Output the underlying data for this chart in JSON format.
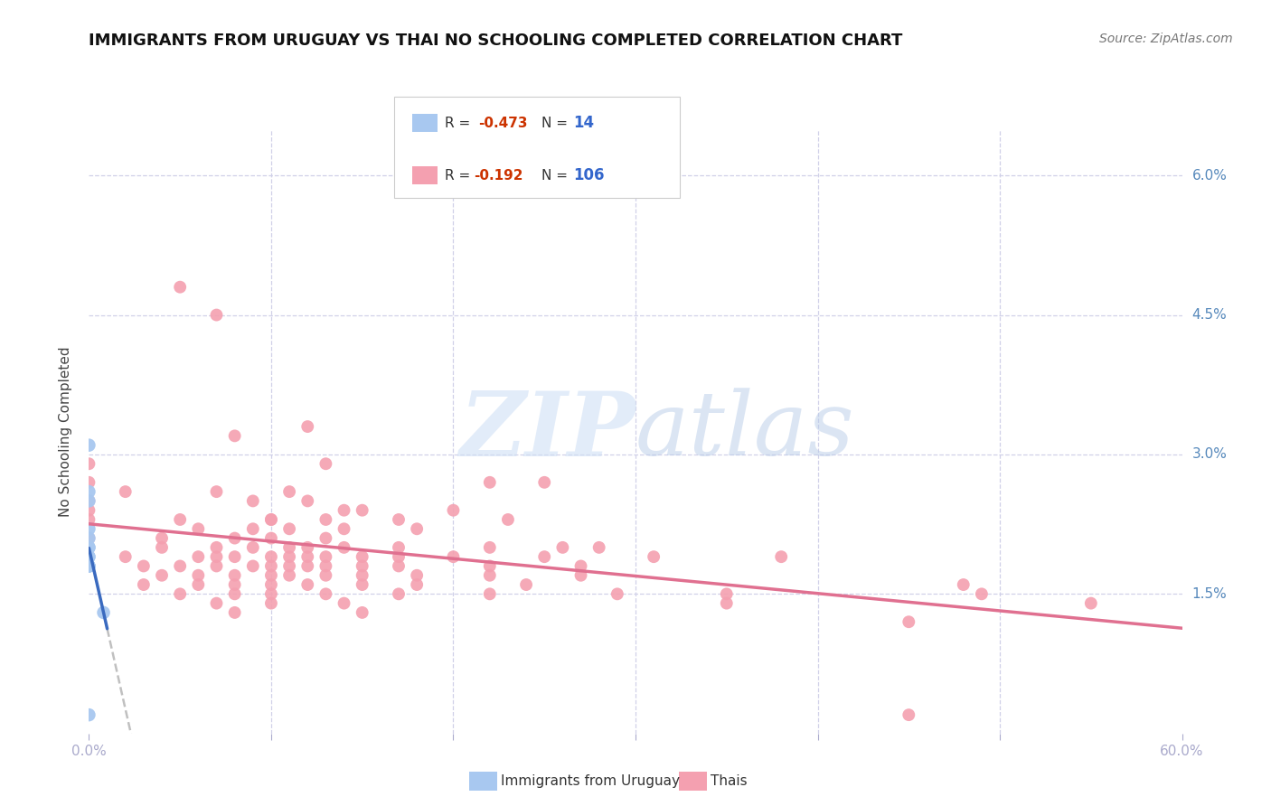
{
  "title": "IMMIGRANTS FROM URUGUAY VS THAI NO SCHOOLING COMPLETED CORRELATION CHART",
  "source": "Source: ZipAtlas.com",
  "ylabel": "No Schooling Completed",
  "uruguay_color": "#a8c8f0",
  "thai_color": "#f4a0b0",
  "trendline_uruguay_color": "#3a6abf",
  "trendline_thai_color": "#e07090",
  "trendline_extended_color": "#c0c0c0",
  "background_color": "#ffffff",
  "grid_color": "#d0d0e8",
  "uruguay_points": [
    [
      0.0,
      0.031
    ],
    [
      0.0,
      0.026
    ],
    [
      0.0,
      0.025
    ],
    [
      0.0,
      0.022
    ],
    [
      0.0,
      0.021
    ],
    [
      0.0,
      0.02
    ],
    [
      0.0,
      0.02
    ],
    [
      0.0,
      0.019
    ],
    [
      0.0,
      0.019
    ],
    [
      0.0,
      0.018
    ],
    [
      0.0,
      0.018
    ],
    [
      0.0,
      0.018
    ],
    [
      0.008,
      0.013
    ],
    [
      0.0,
      0.002
    ]
  ],
  "thai_points": [
    [
      0.05,
      0.048
    ],
    [
      0.07,
      0.045
    ],
    [
      0.12,
      0.033
    ],
    [
      0.08,
      0.032
    ],
    [
      0.0,
      0.029
    ],
    [
      0.13,
      0.029
    ],
    [
      0.22,
      0.027
    ],
    [
      0.25,
      0.027
    ],
    [
      0.0,
      0.027
    ],
    [
      0.02,
      0.026
    ],
    [
      0.07,
      0.026
    ],
    [
      0.11,
      0.026
    ],
    [
      0.0,
      0.025
    ],
    [
      0.09,
      0.025
    ],
    [
      0.12,
      0.025
    ],
    [
      0.14,
      0.024
    ],
    [
      0.15,
      0.024
    ],
    [
      0.2,
      0.024
    ],
    [
      0.0,
      0.024
    ],
    [
      0.05,
      0.023
    ],
    [
      0.1,
      0.023
    ],
    [
      0.1,
      0.023
    ],
    [
      0.13,
      0.023
    ],
    [
      0.17,
      0.023
    ],
    [
      0.23,
      0.023
    ],
    [
      0.0,
      0.023
    ],
    [
      0.06,
      0.022
    ],
    [
      0.09,
      0.022
    ],
    [
      0.11,
      0.022
    ],
    [
      0.14,
      0.022
    ],
    [
      0.18,
      0.022
    ],
    [
      0.04,
      0.021
    ],
    [
      0.08,
      0.021
    ],
    [
      0.1,
      0.021
    ],
    [
      0.13,
      0.021
    ],
    [
      0.0,
      0.021
    ],
    [
      0.04,
      0.02
    ],
    [
      0.07,
      0.02
    ],
    [
      0.09,
      0.02
    ],
    [
      0.11,
      0.02
    ],
    [
      0.12,
      0.02
    ],
    [
      0.14,
      0.02
    ],
    [
      0.17,
      0.02
    ],
    [
      0.22,
      0.02
    ],
    [
      0.26,
      0.02
    ],
    [
      0.28,
      0.02
    ],
    [
      0.02,
      0.019
    ],
    [
      0.06,
      0.019
    ],
    [
      0.07,
      0.019
    ],
    [
      0.08,
      0.019
    ],
    [
      0.1,
      0.019
    ],
    [
      0.11,
      0.019
    ],
    [
      0.12,
      0.019
    ],
    [
      0.13,
      0.019
    ],
    [
      0.15,
      0.019
    ],
    [
      0.17,
      0.019
    ],
    [
      0.2,
      0.019
    ],
    [
      0.25,
      0.019
    ],
    [
      0.31,
      0.019
    ],
    [
      0.38,
      0.019
    ],
    [
      0.03,
      0.018
    ],
    [
      0.05,
      0.018
    ],
    [
      0.07,
      0.018
    ],
    [
      0.09,
      0.018
    ],
    [
      0.1,
      0.018
    ],
    [
      0.11,
      0.018
    ],
    [
      0.12,
      0.018
    ],
    [
      0.13,
      0.018
    ],
    [
      0.15,
      0.018
    ],
    [
      0.17,
      0.018
    ],
    [
      0.22,
      0.018
    ],
    [
      0.27,
      0.018
    ],
    [
      0.04,
      0.017
    ],
    [
      0.06,
      0.017
    ],
    [
      0.08,
      0.017
    ],
    [
      0.1,
      0.017
    ],
    [
      0.11,
      0.017
    ],
    [
      0.13,
      0.017
    ],
    [
      0.15,
      0.017
    ],
    [
      0.18,
      0.017
    ],
    [
      0.22,
      0.017
    ],
    [
      0.27,
      0.017
    ],
    [
      0.03,
      0.016
    ],
    [
      0.06,
      0.016
    ],
    [
      0.08,
      0.016
    ],
    [
      0.1,
      0.016
    ],
    [
      0.12,
      0.016
    ],
    [
      0.15,
      0.016
    ],
    [
      0.18,
      0.016
    ],
    [
      0.24,
      0.016
    ],
    [
      0.48,
      0.016
    ],
    [
      0.05,
      0.015
    ],
    [
      0.08,
      0.015
    ],
    [
      0.1,
      0.015
    ],
    [
      0.13,
      0.015
    ],
    [
      0.17,
      0.015
    ],
    [
      0.22,
      0.015
    ],
    [
      0.29,
      0.015
    ],
    [
      0.35,
      0.015
    ],
    [
      0.49,
      0.015
    ],
    [
      0.07,
      0.014
    ],
    [
      0.1,
      0.014
    ],
    [
      0.14,
      0.014
    ],
    [
      0.35,
      0.014
    ],
    [
      0.55,
      0.014
    ],
    [
      0.08,
      0.013
    ],
    [
      0.15,
      0.013
    ],
    [
      0.45,
      0.012
    ],
    [
      0.45,
      0.002
    ]
  ]
}
